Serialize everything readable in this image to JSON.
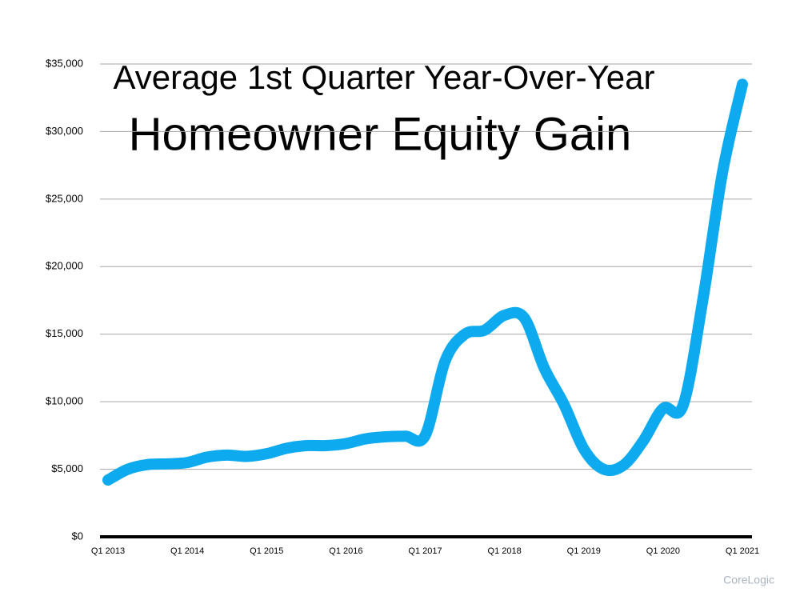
{
  "chart_data": {
    "type": "line",
    "title": [
      "Average 1st Quarter Year-Over-Year",
      "Homeowner Equity Gain"
    ],
    "source": "CoreLogic",
    "categories": [
      "Q1 2013",
      null,
      null,
      null,
      "Q1 2014",
      null,
      null,
      null,
      "Q1 2015",
      null,
      null,
      null,
      "Q1 2016",
      null,
      null,
      null,
      "Q1 2017",
      null,
      null,
      null,
      "Q1 2018",
      null,
      null,
      null,
      "Q1 2019",
      null,
      null,
      null,
      "Q1 2020",
      null,
      null,
      null,
      "Q1 2021"
    ],
    "series": [
      {
        "color": "#0eaaef",
        "values": [
          4200,
          5000,
          5350,
          5400,
          5500,
          5900,
          6050,
          5950,
          6150,
          6550,
          6750,
          6750,
          6900,
          7250,
          7400,
          7450,
          7500,
          13000,
          15000,
          15300,
          16400,
          16200,
          12500,
          9800,
          6500,
          5000,
          5300,
          7100,
          9500,
          9700,
          17500,
          27000,
          33500
        ]
      }
    ],
    "ylim": [
      0,
      35000
    ],
    "yticks": [
      {
        "value": 0,
        "label": "$0"
      },
      {
        "value": 5000,
        "label": "$5,000"
      },
      {
        "value": 10000,
        "label": "$10,000"
      },
      {
        "value": 15000,
        "label": "$15,000"
      },
      {
        "value": 20000,
        "label": "$20,000"
      },
      {
        "value": 25000,
        "label": "$25,000"
      },
      {
        "value": 30000,
        "label": "$30,000"
      },
      {
        "value": 35000,
        "label": "$35,000"
      }
    ],
    "grid": true
  }
}
